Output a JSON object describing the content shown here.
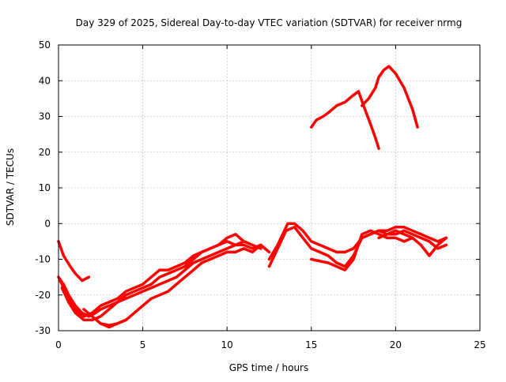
{
  "chart_data": {
    "type": "line",
    "title": "Day 329 of 2025, Sidereal Day-to-day VTEC variation (SDTVAR) for receiver nrmg",
    "xlabel": "GPS time / hours",
    "ylabel": "SDTVAR / TECUs",
    "xlim": [
      0,
      25
    ],
    "ylim": [
      -30,
      50
    ],
    "xticks": [
      0,
      5,
      10,
      15,
      20,
      25
    ],
    "yticks": [
      -30,
      -20,
      -10,
      0,
      10,
      20,
      30,
      40,
      50
    ],
    "grid": true,
    "series_color": "#ff0000",
    "series": [
      {
        "name": "track-1",
        "x": [
          0.0,
          0.3,
          0.7,
          1.0,
          1.4,
          1.8
        ],
        "y": [
          -5,
          -9,
          -12,
          -14,
          -16,
          -15
        ]
      },
      {
        "name": "track-2",
        "x": [
          0.0,
          0.3,
          0.6,
          1.0,
          1.4,
          1.8,
          2.2,
          2.5,
          3.0,
          3.5,
          4.0,
          4.5,
          5.0,
          5.5,
          6.0,
          6.5,
          7.0,
          7.5,
          8.0,
          8.5,
          9.0,
          9.5,
          10.0,
          10.5,
          11.0,
          11.5,
          12.0
        ],
        "y": [
          -15,
          -17,
          -20,
          -23,
          -25,
          -26,
          -25,
          -24,
          -23,
          -22,
          -21,
          -20,
          -19,
          -18,
          -17,
          -16,
          -15,
          -13,
          -11,
          -10,
          -9,
          -8,
          -7,
          -6,
          -6,
          -7,
          -6
        ]
      },
      {
        "name": "track-3",
        "x": [
          0.2,
          0.6,
          1.0,
          1.5,
          2.0,
          2.5,
          3.0,
          3.5,
          4.0,
          4.5,
          5.0,
          5.5,
          6.0,
          6.5,
          7.0,
          7.5,
          8.0,
          8.5,
          9.0,
          9.5,
          10.0,
          10.5,
          11.0,
          11.5,
          12.0
        ],
        "y": [
          -18,
          -22,
          -25,
          -27,
          -27,
          -26,
          -24,
          -22,
          -20,
          -19,
          -18,
          -17,
          -15,
          -14,
          -13,
          -12,
          -10,
          -8,
          -7,
          -6,
          -5,
          -6,
          -5,
          -6,
          -7
        ]
      },
      {
        "name": "track-4",
        "x": [
          0.1,
          0.5,
          1.0,
          1.5,
          2.0,
          2.5,
          3.0,
          3.5,
          4.0,
          4.5,
          5.0,
          5.5,
          6.0,
          6.5,
          7.0,
          7.5,
          8.0,
          8.5,
          9.0,
          9.5,
          10.0,
          10.5,
          11.0
        ],
        "y": [
          -16,
          -20,
          -24,
          -26,
          -25,
          -23,
          -22,
          -21,
          -19,
          -18,
          -17,
          -15,
          -13,
          -13,
          -12,
          -11,
          -9,
          -8,
          -7,
          -6,
          -4,
          -3,
          -5
        ]
      },
      {
        "name": "track-5",
        "x": [
          1.5,
          2.0,
          2.5,
          3.0,
          3.5,
          4.0,
          4.5,
          5.0,
          5.5,
          6.0,
          6.5,
          7.0,
          7.5,
          8.0,
          8.5,
          9.0,
          9.5,
          10.0,
          10.5,
          11.0,
          11.5,
          12.0,
          12.5
        ],
        "y": [
          -24,
          -26,
          -28,
          -29,
          -28,
          -27,
          -25,
          -23,
          -21,
          -20,
          -19,
          -17,
          -15,
          -13,
          -11,
          -10,
          -9,
          -8,
          -8,
          -7,
          -8,
          -6,
          -8
        ]
      },
      {
        "name": "track-6",
        "x": [
          2.5,
          3.0,
          3.5,
          4.0
        ],
        "y": [
          -28,
          -28.5,
          -28,
          -27
        ]
      },
      {
        "name": "track-7",
        "x": [
          12.5,
          13.0,
          13.3,
          13.6,
          14.0,
          14.5,
          15.0,
          15.5,
          16.0,
          16.5,
          17.0,
          17.5,
          18.0,
          18.5,
          19.0,
          19.5,
          20.0,
          20.5,
          21.0,
          21.5,
          22.0,
          22.5,
          23.0
        ],
        "y": [
          -10,
          -6,
          -3,
          0,
          0,
          -2,
          -5,
          -6,
          -7,
          -8,
          -8,
          -7,
          -4,
          -3,
          -2,
          -2,
          -1,
          -1,
          -2,
          -3,
          -4,
          -5,
          -4
        ]
      },
      {
        "name": "track-8",
        "x": [
          12.5,
          13.0,
          13.5,
          14.0,
          14.5,
          15.0,
          15.5,
          16.0,
          16.5,
          17.0,
          17.5,
          18.0,
          18.5,
          19.0,
          19.5,
          20.0,
          20.5,
          21.0,
          21.5,
          22.0,
          22.5,
          23.0
        ],
        "y": [
          -12,
          -7,
          -2,
          -1,
          -4,
          -7,
          -8,
          -9,
          -11,
          -12,
          -9,
          -4,
          -3,
          -2,
          -3,
          -3,
          -2,
          -3,
          -4,
          -5,
          -7,
          -6
        ]
      },
      {
        "name": "track-9",
        "x": [
          15.0,
          15.5,
          16.0,
          16.5,
          17.0,
          17.5,
          18.0,
          18.5,
          19.0,
          19.5,
          20.0,
          20.5,
          21.0
        ],
        "y": [
          -10,
          -10.5,
          -11,
          -12,
          -13,
          -10,
          -3,
          -2,
          -3,
          -4,
          -4,
          -5,
          -4
        ]
      },
      {
        "name": "track-10",
        "x": [
          19.0,
          19.5,
          20.0,
          20.5,
          21.0,
          21.5,
          22.0,
          22.5,
          23.0
        ],
        "y": [
          -4,
          -3,
          -2,
          -3,
          -4,
          -6,
          -9,
          -6,
          -4
        ]
      },
      {
        "name": "track-11",
        "x": [
          15.0,
          15.3,
          15.7,
          16.0,
          16.5,
          17.0,
          17.5,
          17.8,
          18.1,
          18.5,
          18.8,
          19.0
        ],
        "y": [
          27,
          29,
          30,
          31,
          33,
          34,
          36,
          37,
          33,
          28,
          24,
          21
        ]
      },
      {
        "name": "track-12",
        "x": [
          18.0,
          18.4,
          18.8,
          19.0,
          19.3,
          19.6,
          20.0,
          20.5,
          21.0,
          21.3
        ],
        "y": [
          33,
          35,
          38,
          41,
          43,
          44,
          42,
          38,
          32,
          27
        ]
      }
    ]
  }
}
